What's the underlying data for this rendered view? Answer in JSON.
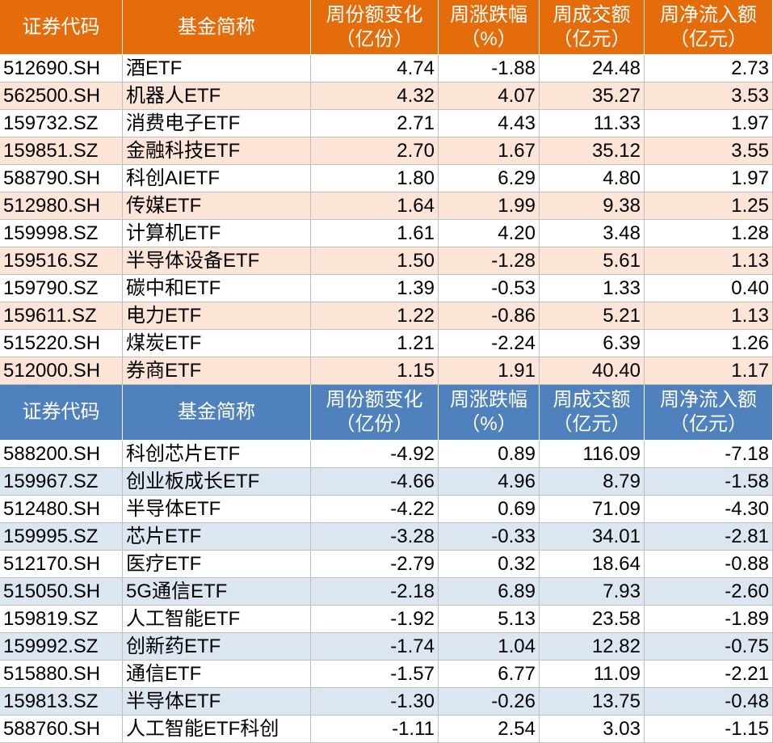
{
  "tables": [
    {
      "header": [
        [
          "证券代码"
        ],
        [
          "基金简称"
        ],
        [
          "周份额变化",
          "（亿份）"
        ],
        [
          "周涨跌幅",
          "（%）"
        ],
        [
          "周成交额",
          "（亿元）"
        ],
        [
          "周净流入额",
          "（亿元）"
        ]
      ],
      "rows": [
        [
          "512690.SH",
          "酒ETF",
          "4.74",
          "-1.88",
          "24.48",
          "2.73"
        ],
        [
          "562500.SH",
          "机器人ETF",
          "4.32",
          "4.07",
          "35.27",
          "3.53"
        ],
        [
          "159732.SZ",
          "消费电子ETF",
          "2.71",
          "4.43",
          "11.33",
          "1.97"
        ],
        [
          "159851.SZ",
          "金融科技ETF",
          "2.70",
          "1.67",
          "35.12",
          "3.55"
        ],
        [
          "588790.SH",
          "科创AIETF",
          "1.80",
          "6.29",
          "4.80",
          "1.97"
        ],
        [
          "512980.SH",
          "传媒ETF",
          "1.64",
          "1.99",
          "9.38",
          "1.25"
        ],
        [
          "159998.SZ",
          "计算机ETF",
          "1.61",
          "4.20",
          "3.48",
          "1.28"
        ],
        [
          "159516.SZ",
          "半导体设备ETF",
          "1.50",
          "-1.28",
          "5.61",
          "1.13"
        ],
        [
          "159790.SZ",
          "碳中和ETF",
          "1.39",
          "-0.53",
          "1.33",
          "0.40"
        ],
        [
          "159611.SZ",
          "电力ETF",
          "1.22",
          "-0.86",
          "5.21",
          "1.13"
        ],
        [
          "515220.SH",
          "煤炭ETF",
          "1.21",
          "-2.24",
          "6.39",
          "1.26"
        ],
        [
          "512000.SH",
          "券商ETF",
          "1.15",
          "1.91",
          "40.40",
          "1.17"
        ]
      ]
    },
    {
      "header": [
        [
          "证券代码"
        ],
        [
          "基金简称"
        ],
        [
          "周份额变化",
          "（亿份）"
        ],
        [
          "周涨跌幅",
          "（%）"
        ],
        [
          "周成交额",
          "（亿元）"
        ],
        [
          "周净流入额",
          "（亿元）"
        ]
      ],
      "rows": [
        [
          "588200.SH",
          "科创芯片ETF",
          "-4.92",
          "0.89",
          "116.09",
          "-7.18"
        ],
        [
          "159967.SZ",
          "创业板成长ETF",
          "-4.66",
          "4.96",
          "8.79",
          "-1.58"
        ],
        [
          "512480.SH",
          "半导体ETF",
          "-4.22",
          "0.69",
          "71.09",
          "-4.30"
        ],
        [
          "159995.SZ",
          "芯片ETF",
          "-3.28",
          "-0.33",
          "34.01",
          "-2.81"
        ],
        [
          "512170.SH",
          "医疗ETF",
          "-2.79",
          "0.32",
          "18.64",
          "-0.88"
        ],
        [
          "515050.SH",
          "5G通信ETF",
          "-2.18",
          "6.89",
          "7.93",
          "-2.60"
        ],
        [
          "159819.SZ",
          "人工智能ETF",
          "-1.92",
          "5.13",
          "23.58",
          "-1.89"
        ],
        [
          "159992.SZ",
          "创新药ETF",
          "-1.74",
          "1.04",
          "12.82",
          "-0.75"
        ],
        [
          "515880.SH",
          "通信ETF",
          "-1.57",
          "6.77",
          "11.09",
          "-2.21"
        ],
        [
          "159813.SZ",
          "半导体ETF",
          "-1.30",
          "-0.26",
          "13.75",
          "-0.48"
        ],
        [
          "588760.SH",
          "人工智能ETF科创",
          "-1.11",
          "2.54",
          "3.03",
          "-1.15"
        ]
      ]
    }
  ]
}
